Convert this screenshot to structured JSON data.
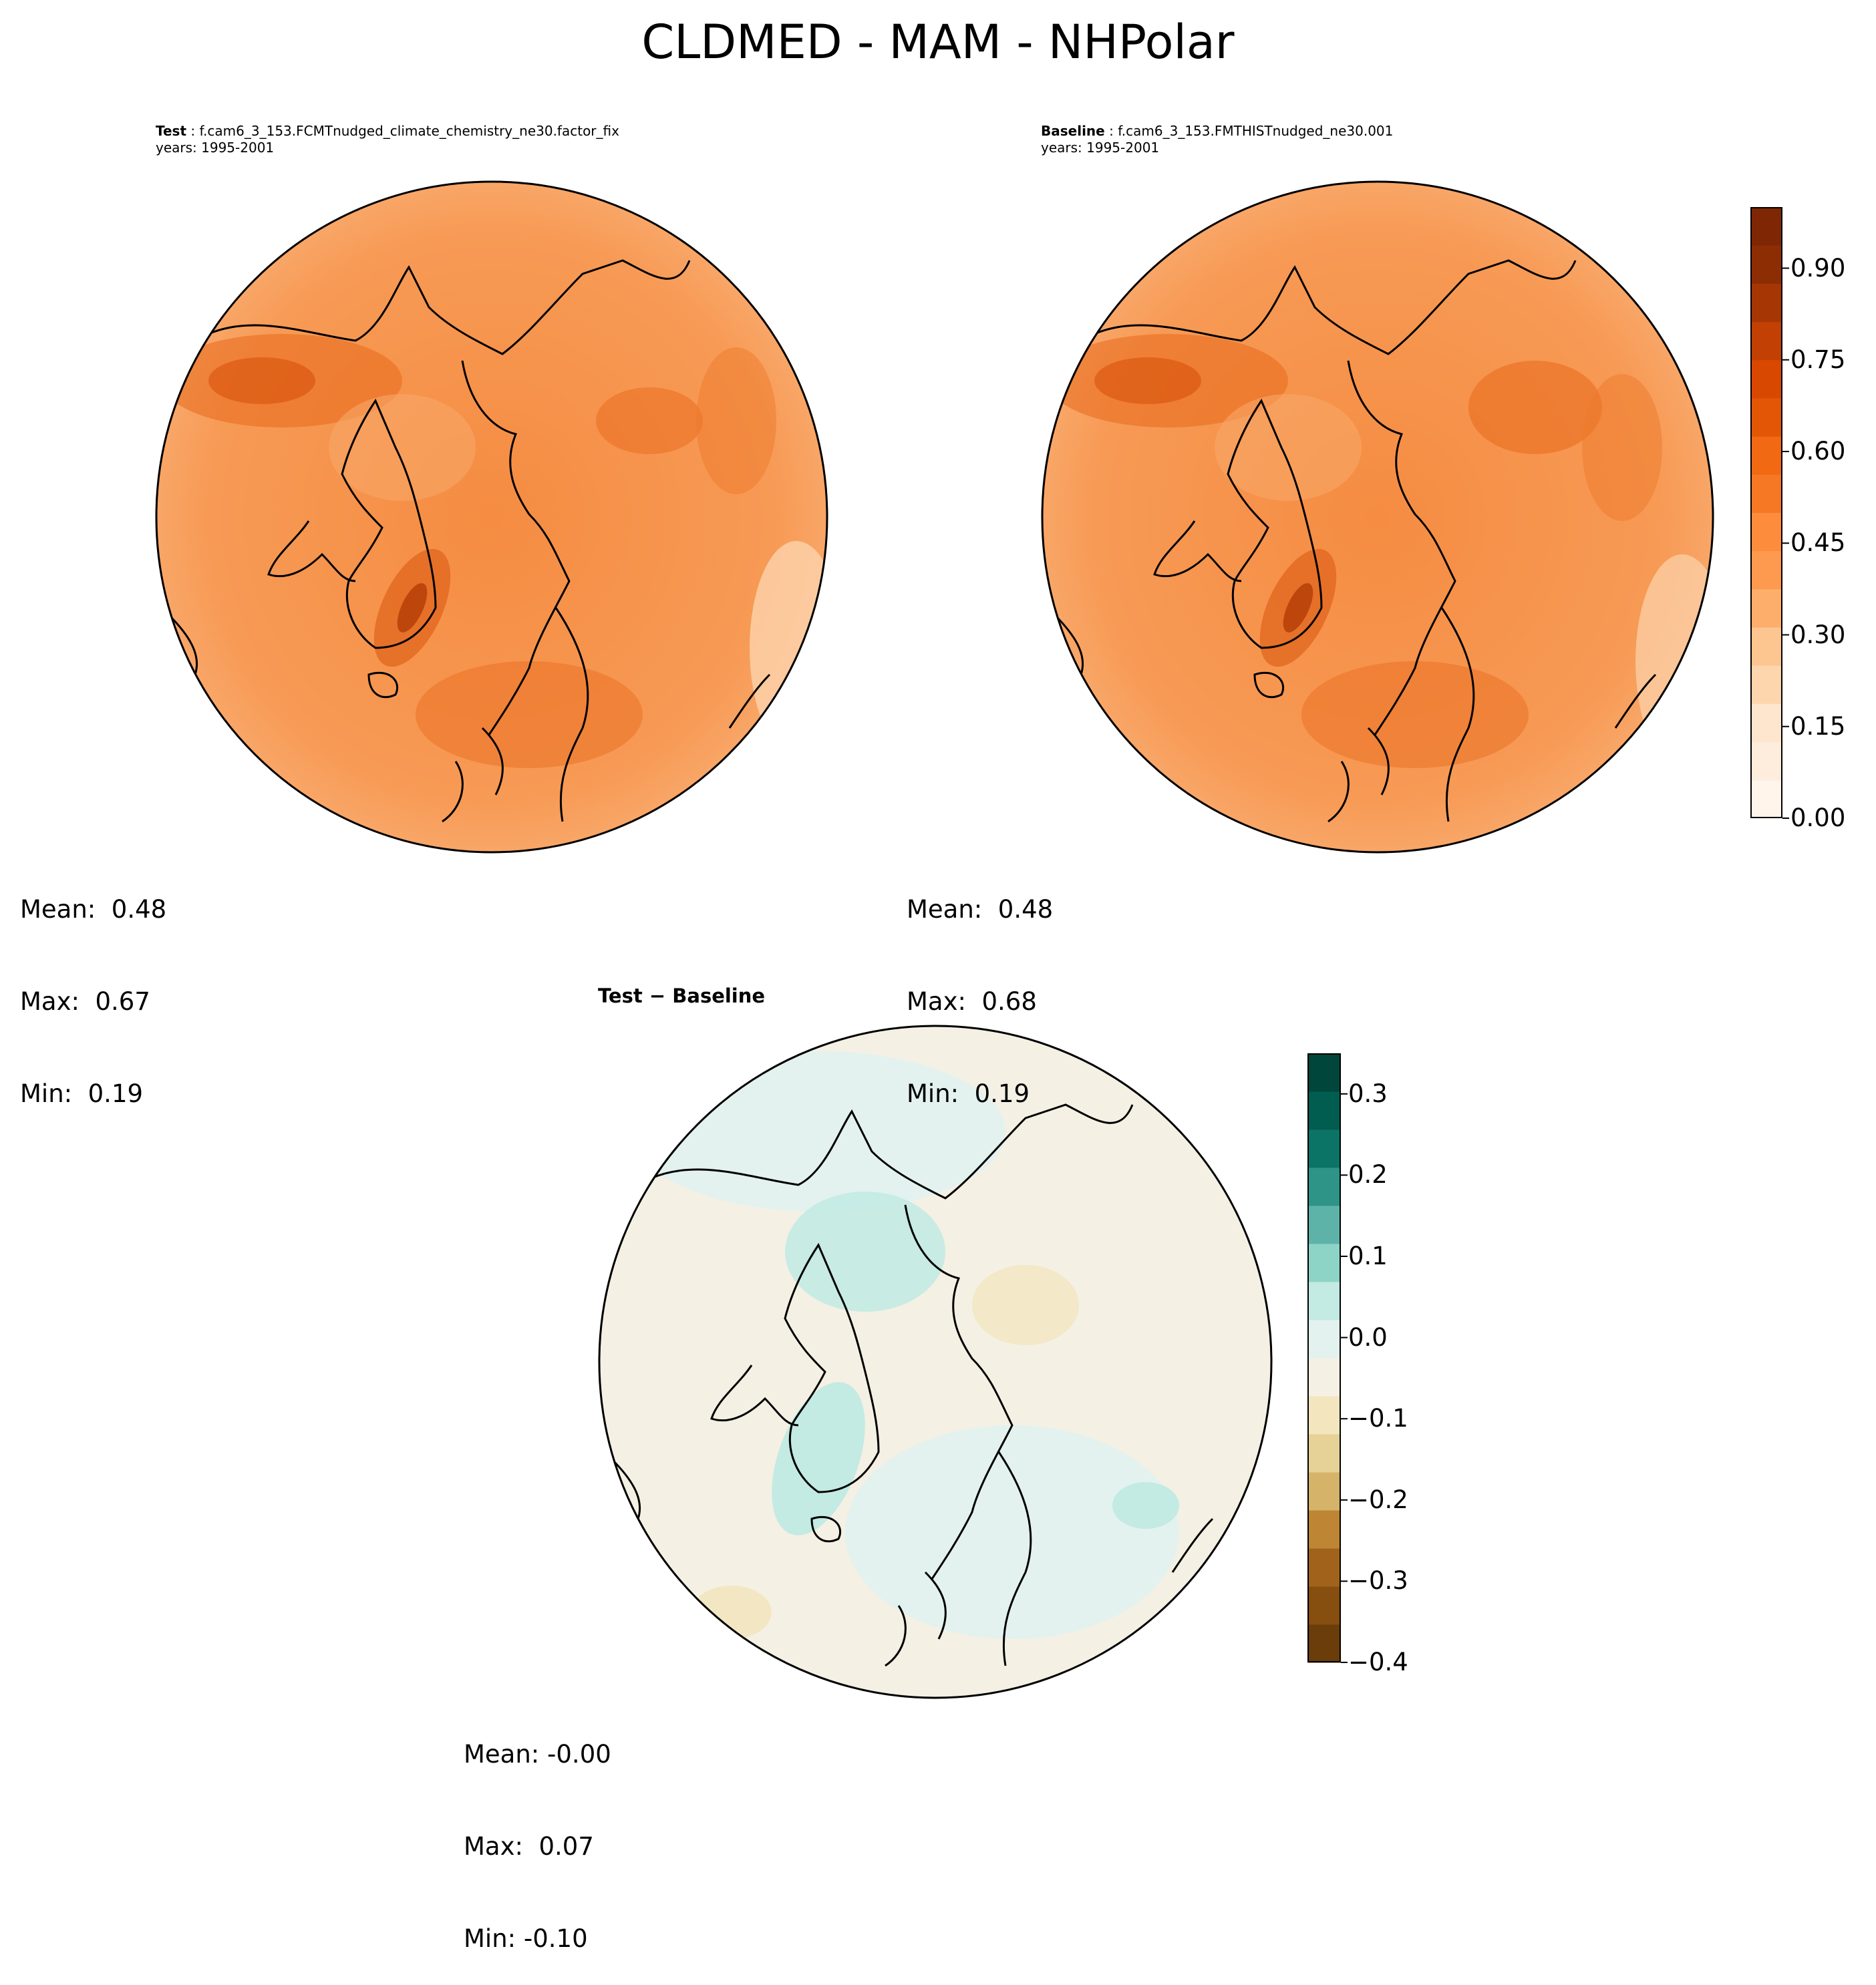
{
  "figure": {
    "title": "CLDMED - MAM - NHPolar"
  },
  "panels": {
    "test": {
      "label": "Test",
      "case": "f.cam6_3_153.FCMTnudged_climate_chemistry_ne30.factor_fix",
      "years": "years: 1995-2001",
      "stats": {
        "mean": "Mean:  0.48",
        "max": "Max:  0.67",
        "min": "Min:  0.19"
      }
    },
    "baseline": {
      "label": "Baseline",
      "case": "f.cam6_3_153.FMTHISTnudged_ne30.001",
      "years": "years: 1995-2001",
      "stats": {
        "mean": "Mean:  0.48",
        "max": "Max:  0.68",
        "min": "Min:  0.19"
      }
    },
    "diff": {
      "title_left": "Test",
      "title_sep": "−",
      "title_right": "Baseline",
      "stats": {
        "mean": "Mean: -0.00",
        "max": "Max:  0.07",
        "min": "Min: -0.10"
      }
    }
  },
  "colorbars": {
    "main": {
      "ticks": [
        "0.00",
        "0.15",
        "0.30",
        "0.45",
        "0.60",
        "0.75",
        "0.90"
      ],
      "range": [
        0.0,
        1.0
      ],
      "colors": [
        "#fff5eb",
        "#feeddc",
        "#fee6ce",
        "#fdd6ae",
        "#fdc691",
        "#fdae6b",
        "#fd9a50",
        "#fd8d3c",
        "#f67824",
        "#f16913",
        "#e35606",
        "#d94801",
        "#c24003",
        "#a63603",
        "#8c2d04",
        "#7f2704"
      ]
    },
    "diff": {
      "ticks": [
        "−0.4",
        "−0.3",
        "−0.2",
        "−0.1",
        "0.0",
        "0.1",
        "0.2",
        "0.3"
      ],
      "range": [
        -0.4,
        0.35
      ],
      "colors": [
        "#6a3d0a",
        "#864e0f",
        "#a1631b",
        "#bd8534",
        "#d5b46a",
        "#e6d196",
        "#f3e6bf",
        "#f4f0e4",
        "#e3f2ef",
        "#c3eae3",
        "#8ed4c6",
        "#5eb3a8",
        "#2e9488",
        "#0b7466",
        "#005d50",
        "#00463a"
      ]
    },
    "colors_summary": {
      "field_base": "#f9a360",
      "land": "#000000"
    }
  }
}
